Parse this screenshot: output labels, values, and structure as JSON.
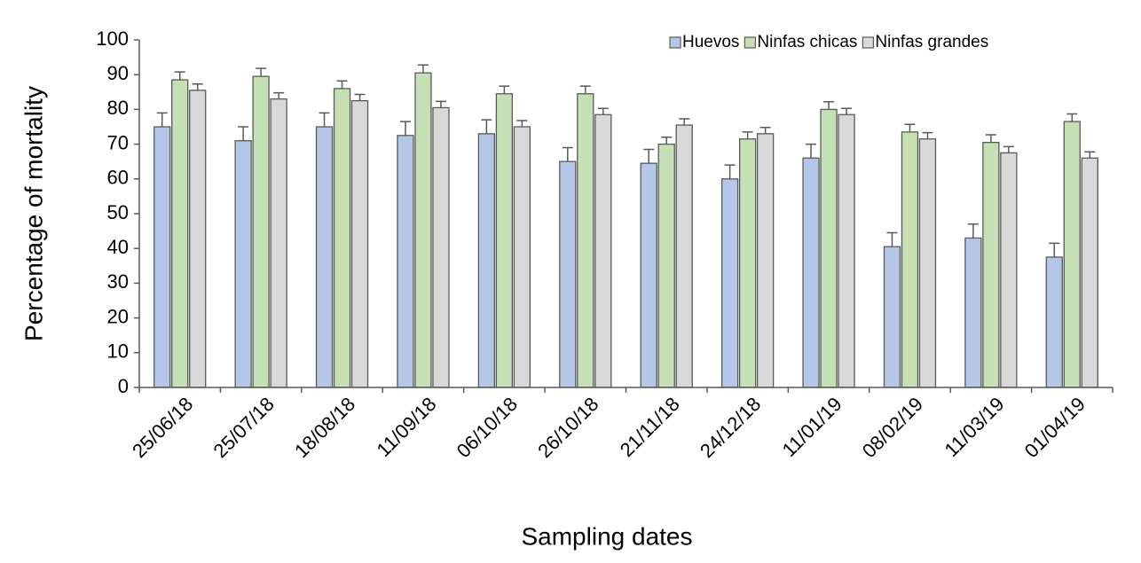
{
  "chart_data": {
    "type": "bar",
    "x_label": "Sampling dates",
    "y_label": "Percentage of mortality",
    "categories": [
      "25/06/18",
      "25/07/18",
      "18/08/18",
      "11/09/18",
      "06/10/18",
      "26/10/18",
      "21/11/18",
      "24/12/18",
      "11/01/19",
      "08/02/19",
      "11/03/19",
      "01/04/19"
    ],
    "series": [
      {
        "name": "Huevos",
        "color": "#b4c7e7",
        "values": [
          75,
          71,
          75,
          72.5,
          73,
          65,
          64.5,
          60,
          66,
          40.5,
          43,
          37.5
        ],
        "errors": [
          4,
          4,
          4,
          4,
          4,
          4,
          4,
          4,
          4,
          4,
          4,
          4
        ]
      },
      {
        "name": "Ninfas chicas",
        "color": "#c5e0b4",
        "values": [
          88.5,
          89.5,
          86,
          90.5,
          84.5,
          84.5,
          70,
          71.5,
          80,
          73.5,
          70.5,
          76.5
        ],
        "errors": [
          2.3,
          2.3,
          2.2,
          2.3,
          2.2,
          2.2,
          2,
          2,
          2.2,
          2.2,
          2.2,
          2.2
        ]
      },
      {
        "name": "Ninfas grandes",
        "color": "#d9d9d9",
        "values": [
          85.5,
          83,
          82.5,
          80.5,
          75,
          78.5,
          75.5,
          73,
          78.5,
          71.5,
          67.5,
          66
        ],
        "errors": [
          1.8,
          1.8,
          1.8,
          1.8,
          1.8,
          1.8,
          1.8,
          1.8,
          1.8,
          1.8,
          1.8,
          1.8
        ]
      }
    ],
    "ylim": [
      0,
      100
    ],
    "yticks": [
      0,
      10,
      20,
      30,
      40,
      50,
      60,
      70,
      80,
      90,
      100
    ],
    "legend": "top-right"
  }
}
